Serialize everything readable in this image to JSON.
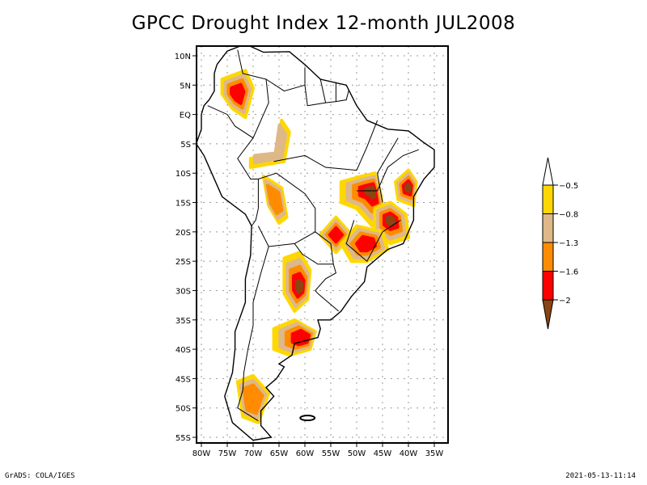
{
  "title": "GPCC Drought Index 12-month JUL2008",
  "footer": {
    "left": "GrADS: COLA/IGES",
    "right": "2021-05-13-11:14"
  },
  "map": {
    "region": "South America",
    "lat_range": [
      -56,
      11
    ],
    "lon_range": [
      -81,
      -32
    ],
    "lat_ticks": [
      {
        "value": 10,
        "label": "10N"
      },
      {
        "value": 5,
        "label": "5N"
      },
      {
        "value": 0,
        "label": "EQ"
      },
      {
        "value": -5,
        "label": "5S"
      },
      {
        "value": -10,
        "label": "10S"
      },
      {
        "value": -15,
        "label": "15S"
      },
      {
        "value": -20,
        "label": "20S"
      },
      {
        "value": -25,
        "label": "25S"
      },
      {
        "value": -30,
        "label": "30S"
      },
      {
        "value": -35,
        "label": "35S"
      },
      {
        "value": -40,
        "label": "40S"
      },
      {
        "value": -45,
        "label": "45S"
      },
      {
        "value": -50,
        "label": "50S"
      },
      {
        "value": -55,
        "label": "55S"
      }
    ],
    "lon_ticks": [
      {
        "value": -80,
        "label": "80W"
      },
      {
        "value": -75,
        "label": "75W"
      },
      {
        "value": -70,
        "label": "70W"
      },
      {
        "value": -65,
        "label": "65W"
      },
      {
        "value": -60,
        "label": "60W"
      },
      {
        "value": -55,
        "label": "55W"
      },
      {
        "value": -50,
        "label": "50W"
      },
      {
        "value": -45,
        "label": "45W"
      },
      {
        "value": -40,
        "label": "40W"
      },
      {
        "value": -35,
        "label": "35W"
      }
    ],
    "drought_regions": [
      {
        "name": "colombia",
        "lon": -73,
        "lat": 3.5,
        "peak_level": 3
      },
      {
        "name": "western-amazon",
        "lon": -66.5,
        "lat": -5,
        "peak_level": 1
      },
      {
        "name": "peru-bolivia",
        "lon": -66,
        "lat": -14.5,
        "peak_level": 2
      },
      {
        "name": "central-brazil",
        "lon": -47,
        "lat": -13,
        "peak_level": 4
      },
      {
        "name": "bahia-coast",
        "lon": -40,
        "lat": -12.5,
        "peak_level": 4
      },
      {
        "name": "minas-gerais",
        "lon": -43.5,
        "lat": -18,
        "peak_level": 4
      },
      {
        "name": "mato-grosso-sul",
        "lon": -54,
        "lat": -20.5,
        "peak_level": 3
      },
      {
        "name": "parana",
        "lon": -48,
        "lat": -22,
        "peak_level": 3
      },
      {
        "name": "northeast-argentina",
        "lon": -61,
        "lat": -29.5,
        "peak_level": 4
      },
      {
        "name": "buenos-aires",
        "lon": -60,
        "lat": -38,
        "peak_level": 3
      },
      {
        "name": "patagonia",
        "lon": -70,
        "lat": -48.5,
        "peak_level": 2
      }
    ]
  },
  "colorbar": {
    "levels": [
      {
        "label": "-0.5",
        "color": "#ffd700"
      },
      {
        "label": "-0.8",
        "color": "#deb887"
      },
      {
        "label": "-1.3",
        "color": "#ff8c00"
      },
      {
        "label": "-1.6",
        "color": "#ff0000"
      },
      {
        "label": "-2",
        "color": "#8b4513"
      }
    ],
    "above_color": "#ffffff",
    "below_color": "#8b4513"
  }
}
